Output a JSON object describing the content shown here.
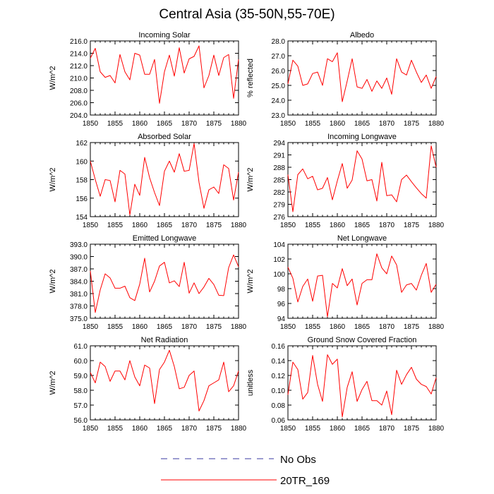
{
  "title": "Central Asia (35-50N,55-70E)",
  "colors": {
    "model": "#ff0000",
    "obs": "#3a3aa0",
    "axis": "#000000"
  },
  "legend": {
    "obs_label": "No Obs",
    "model_label": "20TR_169"
  },
  "chart_data": [
    {
      "type": "line",
      "title": "Incoming Solar",
      "ylabel": "W/m^2",
      "xlabel": "",
      "xlim": [
        1850,
        1880
      ],
      "xticks": [
        "1850",
        "1855",
        "1860",
        "1865",
        "1870",
        "1875",
        "1880"
      ],
      "ylim": [
        204.0,
        216.0
      ],
      "yticks": [
        "204.0",
        "206.0",
        "208.0",
        "210.0",
        "212.0",
        "214.0",
        "216.0"
      ],
      "x": [
        1850,
        1851,
        1852,
        1853,
        1854,
        1855,
        1856,
        1857,
        1858,
        1859,
        1860,
        1861,
        1862,
        1863,
        1864,
        1865,
        1866,
        1867,
        1868,
        1869,
        1870,
        1871,
        1872,
        1873,
        1874,
        1875,
        1876,
        1877,
        1878,
        1879,
        1880
      ],
      "series": [
        {
          "name": "20TR_169",
          "values": [
            213.2,
            214.8,
            211.0,
            210.1,
            210.4,
            209.2,
            213.8,
            211.0,
            209.7,
            214.0,
            213.7,
            210.6,
            210.6,
            213.0,
            205.9,
            211.0,
            213.7,
            210.3,
            214.9,
            210.8,
            213.1,
            213.5,
            215.2,
            208.4,
            210.4,
            213.7,
            210.4,
            213.3,
            213.8,
            206.7,
            213.0
          ]
        }
      ]
    },
    {
      "type": "line",
      "title": "Albedo",
      "ylabel": "% reflected",
      "xlabel": "",
      "xlim": [
        1850,
        1880
      ],
      "xticks": [
        "1850",
        "1855",
        "1860",
        "1865",
        "1870",
        "1875",
        "1880"
      ],
      "ylim": [
        23.0,
        28.0
      ],
      "yticks": [
        "23.0",
        "24.0",
        "25.0",
        "26.0",
        "27.0",
        "28.0"
      ],
      "x": [
        1850,
        1851,
        1852,
        1853,
        1854,
        1855,
        1856,
        1857,
        1858,
        1859,
        1860,
        1861,
        1862,
        1863,
        1864,
        1865,
        1866,
        1867,
        1868,
        1869,
        1870,
        1871,
        1872,
        1873,
        1874,
        1875,
        1876,
        1877,
        1878,
        1879,
        1880
      ],
      "series": [
        {
          "name": "20TR_169",
          "values": [
            25.1,
            26.7,
            26.3,
            25.0,
            25.1,
            25.8,
            25.9,
            25.0,
            26.8,
            26.6,
            27.2,
            23.9,
            25.3,
            26.8,
            24.9,
            24.8,
            25.4,
            24.6,
            25.3,
            24.8,
            25.5,
            24.4,
            26.8,
            25.9,
            25.7,
            26.7,
            25.9,
            25.2,
            25.7,
            24.8,
            25.6
          ]
        }
      ]
    },
    {
      "type": "line",
      "title": "Absorbed Solar",
      "ylabel": "W/m^2",
      "xlabel": "",
      "xlim": [
        1850,
        1880
      ],
      "xticks": [
        "1850",
        "1855",
        "1860",
        "1865",
        "1870",
        "1875",
        "1880"
      ],
      "ylim": [
        154,
        162
      ],
      "yticks": [
        "154",
        "156",
        "158",
        "160",
        "162"
      ],
      "x": [
        1850,
        1851,
        1852,
        1853,
        1854,
        1855,
        1856,
        1857,
        1858,
        1859,
        1860,
        1861,
        1862,
        1863,
        1864,
        1865,
        1866,
        1867,
        1868,
        1869,
        1870,
        1871,
        1872,
        1873,
        1874,
        1875,
        1876,
        1877,
        1878,
        1879,
        1880
      ],
      "series": [
        {
          "name": "20TR_169",
          "values": [
            160.0,
            158.0,
            156.2,
            158.0,
            157.9,
            155.6,
            159.0,
            158.6,
            154.2,
            157.5,
            156.3,
            160.4,
            158.2,
            156.6,
            155.2,
            158.9,
            160.0,
            158.8,
            160.8,
            158.9,
            159.0,
            161.9,
            157.7,
            154.9,
            156.9,
            157.2,
            156.5,
            159.6,
            159.2,
            155.8,
            158.8
          ]
        }
      ]
    },
    {
      "type": "line",
      "title": "Incoming Longwave",
      "ylabel": "W/m^2",
      "xlabel": "",
      "xlim": [
        1850,
        1880
      ],
      "xticks": [
        "1850",
        "1855",
        "1860",
        "1865",
        "1870",
        "1875",
        "1880"
      ],
      "ylim": [
        276,
        294
      ],
      "yticks": [
        "276",
        "279",
        "282",
        "285",
        "288",
        "291",
        "294"
      ],
      "x": [
        1850,
        1851,
        1852,
        1853,
        1854,
        1855,
        1856,
        1857,
        1858,
        1859,
        1860,
        1861,
        1862,
        1863,
        1864,
        1865,
        1866,
        1867,
        1868,
        1869,
        1870,
        1871,
        1872,
        1873,
        1874,
        1875,
        1876,
        1877,
        1878,
        1879,
        1880
      ],
      "series": [
        {
          "name": "20TR_169",
          "values": [
            286.2,
            277.2,
            286.2,
            287.6,
            285.2,
            285.8,
            282.5,
            282.9,
            285.5,
            280.1,
            284.7,
            288.9,
            282.9,
            284.9,
            292.0,
            290.0,
            284.7,
            285.0,
            279.8,
            289.2,
            281.1,
            281.3,
            279.6,
            285.0,
            286.1,
            284.5,
            283.0,
            281.6,
            280.5,
            293.2,
            288.0
          ]
        }
      ]
    },
    {
      "type": "line",
      "title": "Emitted Longwave",
      "ylabel": "W/m^2",
      "xlabel": "",
      "xlim": [
        1850,
        1880
      ],
      "xticks": [
        "1850",
        "1855",
        "1860",
        "1865",
        "1870",
        "1875",
        "1880"
      ],
      "ylim": [
        375.0,
        393.0
      ],
      "yticks": [
        "375.0",
        "378.0",
        "381.0",
        "384.0",
        "387.0",
        "390.0",
        "393.0"
      ],
      "x": [
        1850,
        1851,
        1852,
        1853,
        1854,
        1855,
        1856,
        1857,
        1858,
        1859,
        1860,
        1861,
        1862,
        1863,
        1864,
        1865,
        1866,
        1867,
        1868,
        1869,
        1870,
        1871,
        1872,
        1873,
        1874,
        1875,
        1876,
        1877,
        1878,
        1879,
        1880
      ],
      "series": [
        {
          "name": "20TR_169",
          "values": [
            386.5,
            376.4,
            381.9,
            385.8,
            384.8,
            382.3,
            382.3,
            382.8,
            380.0,
            379.3,
            383.3,
            389.6,
            381.4,
            384.0,
            387.7,
            388.6,
            383.6,
            384.1,
            382.7,
            388.6,
            381.1,
            383.6,
            381.0,
            382.6,
            384.7,
            383.2,
            380.6,
            380.5,
            387.3,
            390.4,
            387.5
          ]
        }
      ]
    },
    {
      "type": "line",
      "title": "Net Longwave",
      "ylabel": "W/m^2",
      "xlabel": "",
      "xlim": [
        1850,
        1880
      ],
      "xticks": [
        "1850",
        "1855",
        "1860",
        "1865",
        "1870",
        "1875",
        "1880"
      ],
      "ylim": [
        94,
        104
      ],
      "yticks": [
        "94",
        "96",
        "98",
        "100",
        "102",
        "104"
      ],
      "x": [
        1850,
        1851,
        1852,
        1853,
        1854,
        1855,
        1856,
        1857,
        1858,
        1859,
        1860,
        1861,
        1862,
        1863,
        1864,
        1865,
        1866,
        1867,
        1868,
        1869,
        1870,
        1871,
        1872,
        1873,
        1874,
        1875,
        1876,
        1877,
        1878,
        1879,
        1880
      ],
      "series": [
        {
          "name": "20TR_169",
          "values": [
            100.9,
            99.4,
            96.2,
            98.3,
            99.3,
            96.3,
            99.7,
            99.8,
            94.2,
            98.7,
            98.1,
            100.7,
            98.4,
            99.3,
            95.8,
            98.7,
            99.2,
            99.2,
            102.7,
            100.8,
            100.0,
            102.4,
            101.2,
            97.5,
            98.5,
            98.7,
            97.8,
            99.8,
            101.4,
            97.5,
            98.6
          ]
        }
      ]
    },
    {
      "type": "line",
      "title": "Net Radiation",
      "ylabel": "W/m^2",
      "xlabel": "",
      "xlim": [
        1850,
        1880
      ],
      "xticks": [
        "1850",
        "1855",
        "1860",
        "1865",
        "1870",
        "1875",
        "1880"
      ],
      "ylim": [
        56.0,
        61.0
      ],
      "yticks": [
        "56.0",
        "57.0",
        "58.0",
        "59.0",
        "60.0",
        "61.0"
      ],
      "x": [
        1850,
        1851,
        1852,
        1853,
        1854,
        1855,
        1856,
        1857,
        1858,
        1859,
        1860,
        1861,
        1862,
        1863,
        1864,
        1865,
        1866,
        1867,
        1868,
        1869,
        1870,
        1871,
        1872,
        1873,
        1874,
        1875,
        1876,
        1877,
        1878,
        1879,
        1880
      ],
      "series": [
        {
          "name": "20TR_169",
          "values": [
            59.2,
            58.5,
            59.9,
            59.6,
            58.6,
            59.3,
            59.3,
            58.7,
            60.0,
            58.9,
            58.3,
            59.7,
            59.5,
            57.1,
            59.4,
            59.9,
            60.7,
            59.6,
            58.1,
            58.2,
            59.0,
            59.3,
            56.6,
            57.3,
            58.3,
            58.5,
            58.7,
            59.9,
            57.9,
            58.3,
            59.3
          ]
        }
      ]
    },
    {
      "type": "line",
      "title": "Ground Snow Covered Fraction",
      "ylabel": "unitless",
      "xlabel": "",
      "xlim": [
        1850,
        1880
      ],
      "xticks": [
        "1850",
        "1855",
        "1860",
        "1865",
        "1870",
        "1875",
        "1880"
      ],
      "ylim": [
        0.06,
        0.16
      ],
      "yticks": [
        "0.06",
        "0.08",
        "0.10",
        "0.12",
        "0.14",
        "0.16"
      ],
      "x": [
        1850,
        1851,
        1852,
        1853,
        1854,
        1855,
        1856,
        1857,
        1858,
        1859,
        1860,
        1861,
        1862,
        1863,
        1864,
        1865,
        1866,
        1867,
        1868,
        1869,
        1870,
        1871,
        1872,
        1873,
        1874,
        1875,
        1876,
        1877,
        1878,
        1879,
        1880
      ],
      "series": [
        {
          "name": "20TR_169",
          "values": [
            0.094,
            0.138,
            0.128,
            0.088,
            0.097,
            0.147,
            0.108,
            0.085,
            0.148,
            0.135,
            0.142,
            0.064,
            0.104,
            0.125,
            0.085,
            0.101,
            0.112,
            0.086,
            0.086,
            0.08,
            0.099,
            0.067,
            0.127,
            0.108,
            0.121,
            0.131,
            0.115,
            0.108,
            0.105,
            0.095,
            0.117
          ]
        }
      ]
    }
  ]
}
